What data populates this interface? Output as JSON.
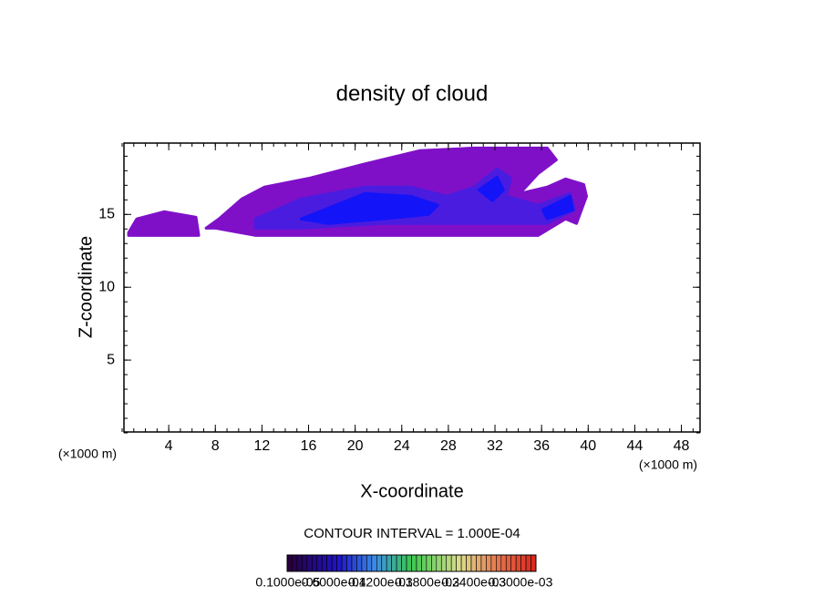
{
  "chart_data": {
    "type": "contour",
    "title": "density of cloud",
    "xlabel": "X-coordinate",
    "ylabel": "Z-coordinate",
    "x_unit_left": "(×1000 m)",
    "x_unit_right": "(×1000 m)",
    "xlim": [
      0,
      49.6
    ],
    "ylim": [
      0,
      19.9
    ],
    "xticks": [
      4,
      8,
      12,
      16,
      20,
      24,
      28,
      32,
      36,
      40,
      44,
      48
    ],
    "yticks": [
      5,
      10,
      15
    ],
    "contour_interval": "CONTOUR INTERVAL = 1.000E-04",
    "regions": [
      {
        "level": 1e-06,
        "color": "#7f10c8",
        "x": [
          7.2,
          8.3,
          10.26,
          12.22,
          16.13,
          20.67,
          25.53,
          30.23,
          36.49,
          37.27,
          35.71,
          34.14,
          36.49,
          38.06,
          39.62,
          39.86,
          39.0,
          38.06,
          35.71,
          27.09,
          11.43,
          7.99
        ],
        "z": [
          14.06,
          14.69,
          16.06,
          16.88,
          17.5,
          18.44,
          19.38,
          19.56,
          19.56,
          18.75,
          17.81,
          16.44,
          16.88,
          17.44,
          17.06,
          16.25,
          14.38,
          14.69,
          13.56,
          13.56,
          13.56,
          14.06
        ]
      },
      {
        "level": 1e-06,
        "color": "#7f10c8",
        "x": [
          0.55,
          1.25,
          3.6,
          6.34,
          6.58,
          0.55
        ],
        "z": [
          13.75,
          14.69,
          15.19,
          14.81,
          13.56,
          13.56
        ]
      },
      {
        "level": 6e-05,
        "color": "#4a1ce0",
        "x": [
          11.43,
          15.35,
          20.83,
          24.75,
          27.88,
          30.23,
          32.18,
          33.36,
          32.97,
          35.71,
          38.45,
          38.84,
          36.49,
          30.23,
          22.4,
          15.35,
          11.43
        ],
        "z": [
          14.69,
          16.06,
          16.88,
          16.88,
          16.25,
          16.88,
          18.13,
          17.5,
          16.25,
          15.63,
          16.44,
          15.31,
          14.38,
          14.38,
          14.38,
          14.06,
          14.06
        ]
      },
      {
        "level": 0.00012,
        "color": "#1414f8",
        "x": [
          15.35,
          20.83,
          24.75,
          27.09,
          26.31,
          22.4,
          17.7
        ],
        "z": [
          14.69,
          16.44,
          16.25,
          15.63,
          15.0,
          14.69,
          14.38
        ]
      },
      {
        "level": 0.00012,
        "color": "#1414f8",
        "x": [
          30.62,
          32.18,
          32.73,
          31.79
        ],
        "z": [
          16.69,
          17.56,
          16.69,
          15.94
        ]
      },
      {
        "level": 0.00012,
        "color": "#1414f8",
        "x": [
          36.1,
          38.45,
          38.68,
          36.49
        ],
        "z": [
          15.31,
          16.25,
          15.31,
          14.69
        ]
      }
    ],
    "clim": [
      0,
      0.00032
    ],
    "colorbar_ticks": [
      {
        "value": 1e-06,
        "label": "0.1000e-05"
      },
      {
        "value": 6e-05,
        "label": "0.6000e-04"
      },
      {
        "value": 0.00012,
        "label": "0.1200e-03"
      },
      {
        "value": 0.00018,
        "label": "0.1800e-03"
      },
      {
        "value": 0.00024,
        "label": "0.2400e-03"
      },
      {
        "value": 0.0003,
        "label": "0.3000e-03"
      }
    ]
  }
}
